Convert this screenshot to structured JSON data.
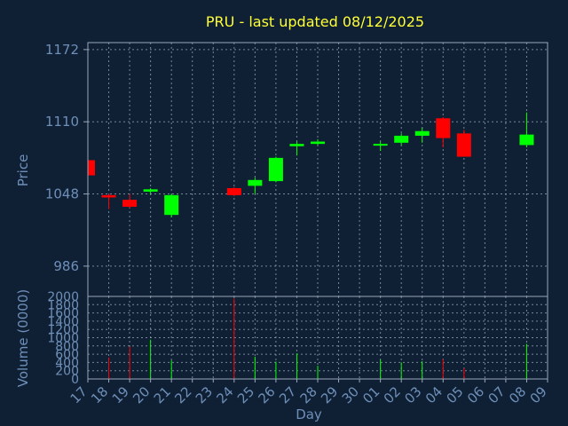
{
  "chart_data": {
    "type": "candlestick",
    "title": "PRU - last updated 08/12/2025",
    "xlabel": "Day",
    "price_panel": {
      "ylabel": "Price",
      "ylim": [
        960,
        1178
      ],
      "yticks": [
        986,
        1048,
        1110,
        1172
      ],
      "grid": true
    },
    "volume_panel": {
      "ylabel": "Volume (0000)",
      "ylim": [
        0,
        2000
      ],
      "yticks": [
        0,
        200,
        400,
        600,
        800,
        1000,
        1200,
        1400,
        1600,
        1800,
        2000
      ],
      "grid": true
    },
    "x_tick_labels": [
      "17",
      "18",
      "19",
      "20",
      "21",
      "22",
      "23",
      "24",
      "25",
      "26",
      "27",
      "28",
      "29",
      "30",
      "01",
      "02",
      "03",
      "04",
      "05",
      "06",
      "07",
      "08",
      "09"
    ],
    "up_color": "#00ff00",
    "down_color": "#ff0000",
    "candles": [
      {
        "day": "17",
        "open": 1077,
        "high": 1079,
        "low": 1063,
        "close": 1064
      },
      {
        "day": "18",
        "open": 1047,
        "high": 1048,
        "low": 1035,
        "close": 1045
      },
      {
        "day": "19",
        "open": 1043,
        "high": 1048,
        "low": 1036,
        "close": 1037
      },
      {
        "day": "20",
        "open": 1050,
        "high": 1053,
        "low": 1048,
        "close": 1052
      },
      {
        "day": "21",
        "open": 1030,
        "high": 1048,
        "low": 1028,
        "close": 1047
      },
      {
        "day": "24",
        "open": 1053,
        "high": 1054,
        "low": 1046,
        "close": 1047
      },
      {
        "day": "25",
        "open": 1055,
        "high": 1062,
        "low": 1048,
        "close": 1060
      },
      {
        "day": "26",
        "open": 1059,
        "high": 1080,
        "low": 1058,
        "close": 1079
      },
      {
        "day": "27",
        "open": 1089,
        "high": 1093,
        "low": 1081,
        "close": 1091
      },
      {
        "day": "28",
        "open": 1091,
        "high": 1095,
        "low": 1090,
        "close": 1093
      },
      {
        "day": "01",
        "open": 1090,
        "high": 1093,
        "low": 1085,
        "close": 1091
      },
      {
        "day": "02",
        "open": 1092,
        "high": 1100,
        "low": 1090,
        "close": 1098
      },
      {
        "day": "03",
        "open": 1098,
        "high": 1105,
        "low": 1092,
        "close": 1102
      },
      {
        "day": "04",
        "open": 1113,
        "high": 1114,
        "low": 1088,
        "close": 1096
      },
      {
        "day": "05",
        "open": 1100,
        "high": 1103,
        "low": 1080,
        "close": 1080
      },
      {
        "day": "08",
        "open": 1090,
        "high": 1118,
        "low": 1088,
        "close": 1099
      }
    ],
    "volumes": [
      {
        "day": "18",
        "value": 520,
        "color": "#ff0000"
      },
      {
        "day": "19",
        "value": 780,
        "color": "#ff0000"
      },
      {
        "day": "20",
        "value": 950,
        "color": "#00ff00"
      },
      {
        "day": "21",
        "value": 450,
        "color": "#00ff00"
      },
      {
        "day": "24",
        "value": 1950,
        "color": "#ff0000"
      },
      {
        "day": "25",
        "value": 540,
        "color": "#00ff00"
      },
      {
        "day": "26",
        "value": 420,
        "color": "#00ff00"
      },
      {
        "day": "27",
        "value": 620,
        "color": "#00ff00"
      },
      {
        "day": "28",
        "value": 320,
        "color": "#00ff00"
      },
      {
        "day": "01",
        "value": 470,
        "color": "#00ff00"
      },
      {
        "day": "02",
        "value": 400,
        "color": "#00ff00"
      },
      {
        "day": "03",
        "value": 430,
        "color": "#00ff00"
      },
      {
        "day": "04",
        "value": 480,
        "color": "#ff0000"
      },
      {
        "day": "05",
        "value": 260,
        "color": "#ff0000"
      },
      {
        "day": "08",
        "value": 850,
        "color": "#00ff00"
      }
    ]
  }
}
